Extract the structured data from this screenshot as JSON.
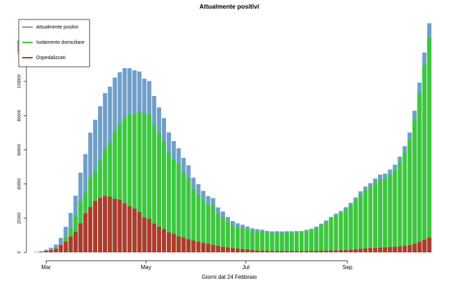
{
  "chart_data": {
    "type": "bar",
    "title": "Attualmente positivi",
    "xlabel": "Giorni dal 24 Febbraio",
    "x": [
      0,
      3,
      6,
      9,
      12,
      15,
      18,
      21,
      24,
      27,
      30,
      33,
      36,
      39,
      42,
      45,
      48,
      51,
      54,
      57,
      60,
      63,
      66,
      69,
      72,
      75,
      78,
      81,
      84,
      87,
      90,
      93,
      96,
      99,
      102,
      105,
      108,
      111,
      114,
      117,
      120,
      123,
      126,
      129,
      132,
      135,
      138,
      141,
      144,
      147,
      150,
      153,
      156,
      159,
      162,
      165,
      168,
      171,
      174,
      177,
      180,
      183,
      186,
      189,
      192,
      195,
      198,
      201,
      204,
      207,
      210,
      213,
      216,
      219,
      222,
      225,
      228,
      231,
      234,
      237,
      240
    ],
    "series": [
      {
        "name": "Attualmente positivi",
        "color": "#6f9fc8",
        "values": [
          221,
          650,
          1600,
          2700,
          4600,
          8500,
          14950,
          23100,
          33200,
          46600,
          57500,
          70000,
          77600,
          85400,
          93200,
          96900,
          102250,
          105400,
          107770,
          107700,
          106500,
          105800,
          101600,
          100200,
          91500,
          84800,
          78500,
          70200,
          65100,
          60900,
          55300,
          50970,
          43700,
          39900,
          36000,
          32900,
          31700,
          26300,
          23900,
          20700,
          18300,
          17000,
          16200,
          15100,
          14100,
          13600,
          13300,
          12600,
          12300,
          12400,
          12300,
          12400,
          12400,
          12500,
          12500,
          13200,
          13900,
          15100,
          16800,
          18700,
          20800,
          22700,
          24200,
          26400,
          29000,
          32100,
          35700,
          38500,
          40500,
          43200,
          45500,
          46100,
          48500,
          51300,
          56000,
          62100,
          70100,
          82900,
          99300,
          116900,
          134000
        ]
      },
      {
        "name": "Isolamento domiciliare",
        "color": "#3cc83c",
        "values": [
          71,
          250,
          900,
          1400,
          2400,
          4200,
          8650,
          13800,
          21200,
          29600,
          34700,
          43500,
          47600,
          53600,
          60300,
          64400,
          70950,
          74600,
          79070,
          80700,
          80900,
          82200,
          81200,
          80600,
          74700,
          69800,
          64900,
          58500,
          54300,
          51600,
          46600,
          43270,
          36800,
          33700,
          30400,
          27900,
          27300,
          22500,
          20700,
          17900,
          15800,
          14800,
          14300,
          13400,
          12800,
          12500,
          12310,
          11610,
          11420,
          11540,
          11450,
          11600,
          11610,
          11740,
          11720,
          12390,
          13030,
          14200,
          15820,
          17700,
          19700,
          21550,
          22950,
          25050,
          27500,
          30400,
          33700,
          36200,
          38000,
          40600,
          42700,
          43200,
          45450,
          48050,
          52500,
          58300,
          65900,
          77900,
          93200,
          109500,
          125400
        ]
      },
      {
        "name": "Ospedalizzati",
        "color": "#b03a2e",
        "values": [
          150,
          400,
          700,
          1300,
          2200,
          4300,
          6300,
          9300,
          12000,
          17000,
          22800,
          26500,
          30000,
          31800,
          32900,
          32500,
          31300,
          30800,
          28700,
          27000,
          25600,
          23600,
          20400,
          19600,
          16800,
          15000,
          13600,
          11700,
          10800,
          9300,
          8700,
          7700,
          6900,
          6200,
          5600,
          5000,
          4400,
          3800,
          3200,
          2800,
          2500,
          2200,
          1900,
          1700,
          1300,
          1100,
          990,
          990,
          880,
          860,
          850,
          800,
          790,
          760,
          780,
          810,
          870,
          900,
          980,
          1000,
          1100,
          1150,
          1250,
          1350,
          1500,
          1700,
          2000,
          2300,
          2500,
          2600,
          2800,
          2900,
          3050,
          3250,
          3500,
          3800,
          4200,
          5000,
          6100,
          7400,
          8600
        ]
      }
    ],
    "xlim": [
      -6,
      246
    ],
    "xticks": [
      {
        "value": 6,
        "label": "Mar"
      },
      {
        "value": 67,
        "label": "May"
      },
      {
        "value": 128,
        "label": "Jul"
      },
      {
        "value": 190,
        "label": "Sep"
      }
    ],
    "ylim": [
      0,
      135000
    ],
    "yticks": [
      0,
      20000,
      40000,
      60000,
      80000,
      100000,
      120000
    ],
    "bar_width": 3,
    "legend": "topleft"
  }
}
